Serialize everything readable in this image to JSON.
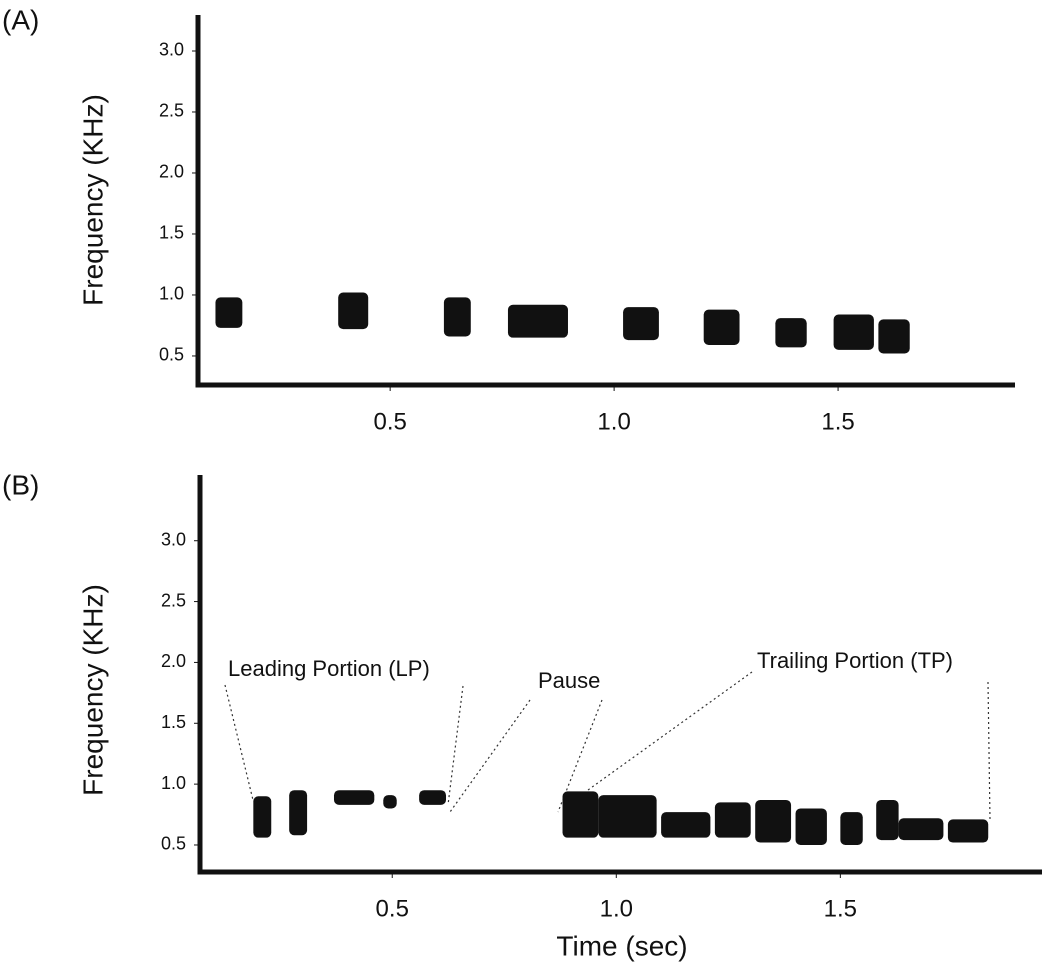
{
  "chart_data": [
    {
      "type": "spectrogram",
      "label": "(A)",
      "y_label": "Frequency (KHz)",
      "x_start": [
        0.11,
        0.384,
        0.62,
        0.763,
        1.02,
        1.2,
        1.36,
        1.49,
        1.59
      ],
      "x_end": [
        0.17,
        0.451,
        0.68,
        0.897,
        1.1,
        1.28,
        1.43,
        1.58,
        1.66
      ],
      "y_low": [
        0.73,
        0.72,
        0.66,
        0.65,
        0.63,
        0.59,
        0.57,
        0.55,
        0.52
      ],
      "y_high": [
        0.98,
        1.02,
        0.98,
        0.92,
        0.9,
        0.88,
        0.81,
        0.84,
        0.8
      ],
      "color": "#111111",
      "xlim": [
        0.071,
        1.895
      ],
      "ylim": [
        0.262,
        3.295
      ],
      "xticks": [
        0.5,
        {
          "value": 1,
          "label": "1.0"
        },
        1.5
      ],
      "yticks": [
        0.5,
        {
          "value": 1,
          "label": "1.0"
        },
        1.5,
        {
          "value": 2,
          "label": "2.0"
        },
        2.5,
        {
          "value": 3,
          "label": "3.0"
        }
      ]
    },
    {
      "type": "spectrogram",
      "label": "(B)",
      "y_label": "Frequency (KHz)",
      "x_label": "Time (sec)",
      "annotations": [
        "Leading Portion (LP)",
        "Pause",
        "Trailing Portion (TP)"
      ],
      "x_start": [
        0.19,
        0.27,
        0.37,
        0.48,
        0.56,
        0.88,
        0.96,
        1.1,
        1.22,
        1.31,
        1.4,
        1.5,
        1.58,
        1.63,
        1.74
      ],
      "x_end": [
        0.23,
        0.31,
        0.46,
        0.51,
        0.62,
        0.96,
        1.09,
        1.21,
        1.3,
        1.39,
        1.47,
        1.55,
        1.63,
        1.73,
        1.83
      ],
      "y_low": [
        0.56,
        0.58,
        0.83,
        0.8,
        0.83,
        0.56,
        0.56,
        0.56,
        0.56,
        0.52,
        0.5,
        0.5,
        0.54,
        0.54,
        0.52
      ],
      "y_high": [
        0.9,
        0.95,
        0.95,
        0.91,
        0.95,
        0.94,
        0.91,
        0.77,
        0.85,
        0.87,
        0.8,
        0.77,
        0.87,
        0.72,
        0.71
      ],
      "color": "#111111",
      "xlim": [
        0.071,
        1.95
      ],
      "ylim": [
        0.278,
        3.54
      ],
      "xticks": [
        0.5,
        {
          "value": 1,
          "label": "1.0"
        },
        1.5
      ],
      "yticks": [
        0.5,
        {
          "value": 1,
          "label": "1.0"
        },
        1.5,
        {
          "value": 2,
          "label": "2.0"
        },
        2.5,
        {
          "value": 3,
          "label": "3.0"
        }
      ]
    }
  ]
}
